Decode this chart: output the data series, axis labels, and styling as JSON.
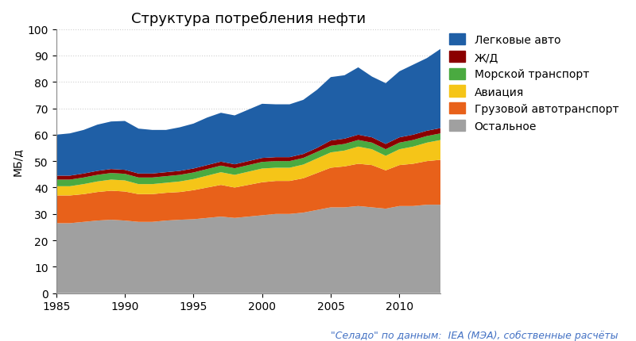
{
  "title": "Структура потребления нефти",
  "ylabel": "МБ/д",
  "source_text": "\"Ceладо\" по данным:  IEA (МЭА), собственные расчёты",
  "years": [
    1985,
    1986,
    1987,
    1988,
    1989,
    1990,
    1991,
    1992,
    1993,
    1994,
    1995,
    1996,
    1997,
    1998,
    1999,
    2000,
    2001,
    2002,
    2003,
    2004,
    2005,
    2006,
    2007,
    2008,
    2009,
    2010,
    2011,
    2012,
    2013
  ],
  "series": {
    "Остальное": [
      26.5,
      26.5,
      27.0,
      27.5,
      27.8,
      27.5,
      27.0,
      27.0,
      27.5,
      27.8,
      28.0,
      28.5,
      29.0,
      28.5,
      29.0,
      29.5,
      30.0,
      30.0,
      30.5,
      31.5,
      32.5,
      32.5,
      33.0,
      32.5,
      32.0,
      33.0,
      33.0,
      33.5,
      33.5
    ],
    "Грузовой автотранспорт": [
      10.5,
      10.5,
      10.5,
      10.8,
      11.0,
      11.0,
      10.5,
      10.5,
      10.5,
      10.5,
      11.0,
      11.5,
      12.0,
      11.5,
      12.0,
      12.5,
      12.5,
      12.5,
      13.0,
      14.0,
      15.0,
      15.5,
      16.0,
      16.0,
      14.5,
      15.5,
      16.0,
      16.5,
      17.0
    ],
    "Авиация": [
      3.5,
      3.5,
      3.8,
      4.0,
      4.2,
      4.2,
      3.8,
      3.8,
      3.8,
      4.0,
      4.2,
      4.5,
      4.8,
      4.8,
      5.0,
      5.2,
      5.0,
      5.0,
      5.2,
      5.5,
      5.8,
      6.0,
      6.5,
      6.0,
      5.5,
      6.0,
      6.5,
      7.0,
      7.5
    ],
    "Морской транспорт": [
      2.5,
      2.5,
      2.5,
      2.5,
      2.5,
      2.5,
      2.5,
      2.5,
      2.5,
      2.5,
      2.5,
      2.5,
      2.5,
      2.5,
      2.5,
      2.5,
      2.5,
      2.5,
      2.5,
      2.5,
      2.5,
      2.5,
      2.5,
      2.5,
      2.5,
      2.5,
      2.5,
      2.5,
      2.5
    ],
    "Ж/Д": [
      1.5,
      1.5,
      1.5,
      1.5,
      1.5,
      1.5,
      1.5,
      1.5,
      1.5,
      1.5,
      1.5,
      1.5,
      1.5,
      1.5,
      1.5,
      1.5,
      1.5,
      1.5,
      1.5,
      1.5,
      2.0,
      2.0,
      2.0,
      2.0,
      2.0,
      2.0,
      2.0,
      2.0,
      2.0
    ],
    "Легковые авто": [
      15.5,
      16.0,
      16.5,
      17.5,
      18.0,
      18.5,
      17.0,
      16.5,
      16.0,
      16.5,
      17.0,
      18.0,
      18.5,
      18.5,
      19.5,
      20.5,
      20.0,
      20.0,
      20.5,
      22.0,
      24.0,
      24.0,
      25.5,
      23.0,
      23.0,
      25.0,
      26.5,
      27.5,
      30.0
    ]
  },
  "colors": {
    "Остальное": "#a0a0a0",
    "Грузовой автотранспорт": "#e8611a",
    "Авиация": "#f5c518",
    "Морской транспорт": "#4aaa40",
    "Ж/Д": "#8b0000",
    "Легковые авто": "#1f5fa6"
  },
  "legend_order": [
    "Легковые авто",
    "Ж/Д",
    "Морской транспорт",
    "Авиация",
    "Грузовой автотранспорт",
    "Остальное"
  ],
  "stack_order": [
    "Остальное",
    "Грузовой автотранспорт",
    "Авиация",
    "Морской транспорт",
    "Ж/Д",
    "Легковые авто"
  ],
  "ylim": [
    0,
    100
  ],
  "yticks": [
    0,
    10,
    20,
    30,
    40,
    50,
    60,
    70,
    80,
    90,
    100
  ],
  "xticks": [
    1985,
    1990,
    1995,
    2000,
    2005,
    2010
  ],
  "xlim": [
    1985,
    2013
  ],
  "background_color": "#ffffff",
  "plot_bg_color": "#ffffff",
  "grid_color": "#d0d0d0",
  "title_fontsize": 13,
  "axis_fontsize": 10,
  "legend_fontsize": 10,
  "source_fontsize": 9,
  "source_color": "#4472c4"
}
